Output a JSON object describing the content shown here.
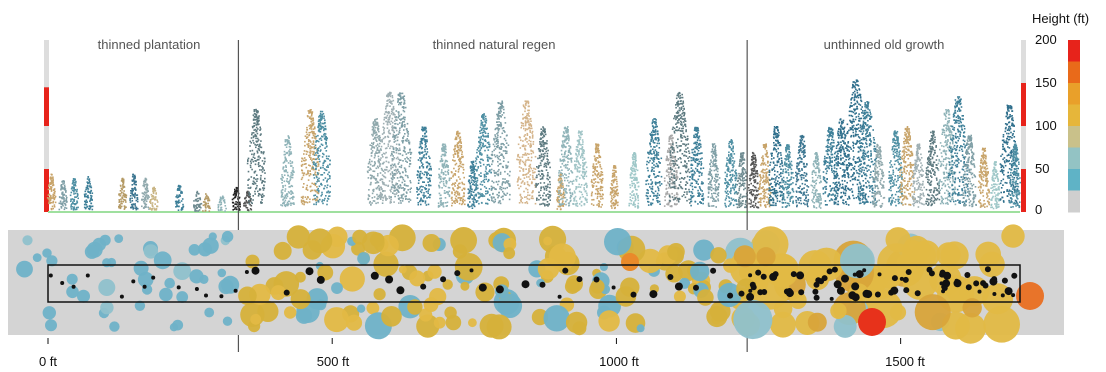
{
  "chart_data": {
    "type": "scatter",
    "title": "",
    "description_sections": [
      {
        "label": "thinned plantation",
        "x_start": 0,
        "x_end": 335
      },
      {
        "label": "thinned natural regen",
        "x_start": 335,
        "x_end": 1230
      },
      {
        "label": "unthinned old growth",
        "x_start": 1230,
        "x_end": 1710
      }
    ],
    "x_axis": {
      "ticks": [
        0,
        500,
        1000,
        1500
      ],
      "tick_labels": [
        "0 ft",
        "500 ft",
        "1000 ft",
        "1500 ft"
      ],
      "range": [
        0,
        1710
      ]
    },
    "height_axis": {
      "label": "Height (ft)",
      "ticks": [
        0,
        50,
        100,
        150,
        200
      ],
      "range": [
        0,
        200
      ]
    },
    "colorbar": {
      "title": "Height (ft)",
      "tick_labels": [
        "0",
        "50",
        "100",
        "150",
        "200"
      ],
      "colors": [
        "#cfcfcf",
        "#5fb3c6",
        "#93c3c4",
        "#c9c18a",
        "#e6b63a",
        "#e9a02a",
        "#e96a1a",
        "#e7231b"
      ]
    },
    "trees": [
      {
        "x": 5,
        "h": 45,
        "c": "#c8a46a"
      },
      {
        "x": 25,
        "h": 38,
        "c": "#7f9fa6"
      },
      {
        "x": 45,
        "h": 40,
        "c": "#4e8fa3"
      },
      {
        "x": 70,
        "h": 42,
        "c": "#3d7f98"
      },
      {
        "x": 130,
        "h": 40,
        "c": "#b59a64"
      },
      {
        "x": 150,
        "h": 45,
        "c": "#3b7590"
      },
      {
        "x": 170,
        "h": 40,
        "c": "#8fa8ac"
      },
      {
        "x": 185,
        "h": 30,
        "c": "#c9b584"
      },
      {
        "x": 230,
        "h": 32,
        "c": "#3d7f98"
      },
      {
        "x": 262,
        "h": 25,
        "c": "#6e8a90"
      },
      {
        "x": 278,
        "h": 22,
        "c": "#b59a64"
      },
      {
        "x": 305,
        "h": 20,
        "c": "#8fb3b8"
      },
      {
        "x": 330,
        "h": 30,
        "c": "#222222"
      },
      {
        "x": 350,
        "h": 25,
        "c": "#555555"
      },
      {
        "x": 365,
        "h": 120,
        "c": "#5d7a80"
      },
      {
        "x": 420,
        "h": 90,
        "c": "#8fb3b8"
      },
      {
        "x": 460,
        "h": 120,
        "c": "#c8a46a"
      },
      {
        "x": 480,
        "h": 118,
        "c": "#4e8fa3"
      },
      {
        "x": 575,
        "h": 110,
        "c": "#8fa8ac"
      },
      {
        "x": 600,
        "h": 140,
        "c": "#a0b0b4"
      },
      {
        "x": 620,
        "h": 140,
        "c": "#7f9fa6"
      },
      {
        "x": 660,
        "h": 100,
        "c": "#3d7f98"
      },
      {
        "x": 695,
        "h": 80,
        "c": "#8fb3b8"
      },
      {
        "x": 720,
        "h": 95,
        "c": "#c8a46a"
      },
      {
        "x": 745,
        "h": 60,
        "c": "#3d7f98"
      },
      {
        "x": 765,
        "h": 115,
        "c": "#4e8fa3"
      },
      {
        "x": 795,
        "h": 130,
        "c": "#7f9fa6"
      },
      {
        "x": 840,
        "h": 130,
        "c": "#d4b48a"
      },
      {
        "x": 870,
        "h": 100,
        "c": "#5d7a80"
      },
      {
        "x": 900,
        "h": 45,
        "c": "#c8a46a"
      },
      {
        "x": 910,
        "h": 100,
        "c": "#8fb3b8"
      },
      {
        "x": 935,
        "h": 95,
        "c": "#a0c4c6"
      },
      {
        "x": 965,
        "h": 80,
        "c": "#c8a46a"
      },
      {
        "x": 995,
        "h": 55,
        "c": "#c8a46a"
      },
      {
        "x": 1030,
        "h": 70,
        "c": "#9ec7c8"
      },
      {
        "x": 1065,
        "h": 110,
        "c": "#3d7f98"
      },
      {
        "x": 1095,
        "h": 90,
        "c": "#a8a8a8"
      },
      {
        "x": 1110,
        "h": 140,
        "c": "#5d7a80"
      },
      {
        "x": 1140,
        "h": 100,
        "c": "#3d7f98"
      },
      {
        "x": 1170,
        "h": 80,
        "c": "#7f9fa6"
      },
      {
        "x": 1200,
        "h": 85,
        "c": "#4e8fa3"
      },
      {
        "x": 1220,
        "h": 70,
        "c": "#6e8a90"
      },
      {
        "x": 1240,
        "h": 70,
        "c": "#555555"
      },
      {
        "x": 1260,
        "h": 80,
        "c": "#c8a46a"
      },
      {
        "x": 1280,
        "h": 100,
        "c": "#2f6f8c"
      },
      {
        "x": 1300,
        "h": 80,
        "c": "#4e8fa3"
      },
      {
        "x": 1325,
        "h": 90,
        "c": "#3b7590"
      },
      {
        "x": 1350,
        "h": 70,
        "c": "#8fb3b8"
      },
      {
        "x": 1375,
        "h": 100,
        "c": "#3d7f98"
      },
      {
        "x": 1395,
        "h": 110,
        "c": "#2f6f8c"
      },
      {
        "x": 1420,
        "h": 155,
        "c": "#2f6f8c"
      },
      {
        "x": 1440,
        "h": 130,
        "c": "#3d7f98"
      },
      {
        "x": 1460,
        "h": 80,
        "c": "#8fa8ac"
      },
      {
        "x": 1490,
        "h": 95,
        "c": "#4e8fa3"
      },
      {
        "x": 1510,
        "h": 100,
        "c": "#c8a46a"
      },
      {
        "x": 1530,
        "h": 80,
        "c": "#a0b0b4"
      },
      {
        "x": 1555,
        "h": 95,
        "c": "#5d7a80"
      },
      {
        "x": 1580,
        "h": 120,
        "c": "#8fb3b8"
      },
      {
        "x": 1600,
        "h": 135,
        "c": "#3d7f98"
      },
      {
        "x": 1620,
        "h": 90,
        "c": "#7f9fa6"
      },
      {
        "x": 1645,
        "h": 75,
        "c": "#c8a46a"
      },
      {
        "x": 1665,
        "h": 60,
        "c": "#9ec7c8"
      },
      {
        "x": 1690,
        "h": 125,
        "c": "#2f6f8c"
      },
      {
        "x": 1700,
        "h": 80,
        "c": "#4e8fa3"
      }
    ]
  }
}
